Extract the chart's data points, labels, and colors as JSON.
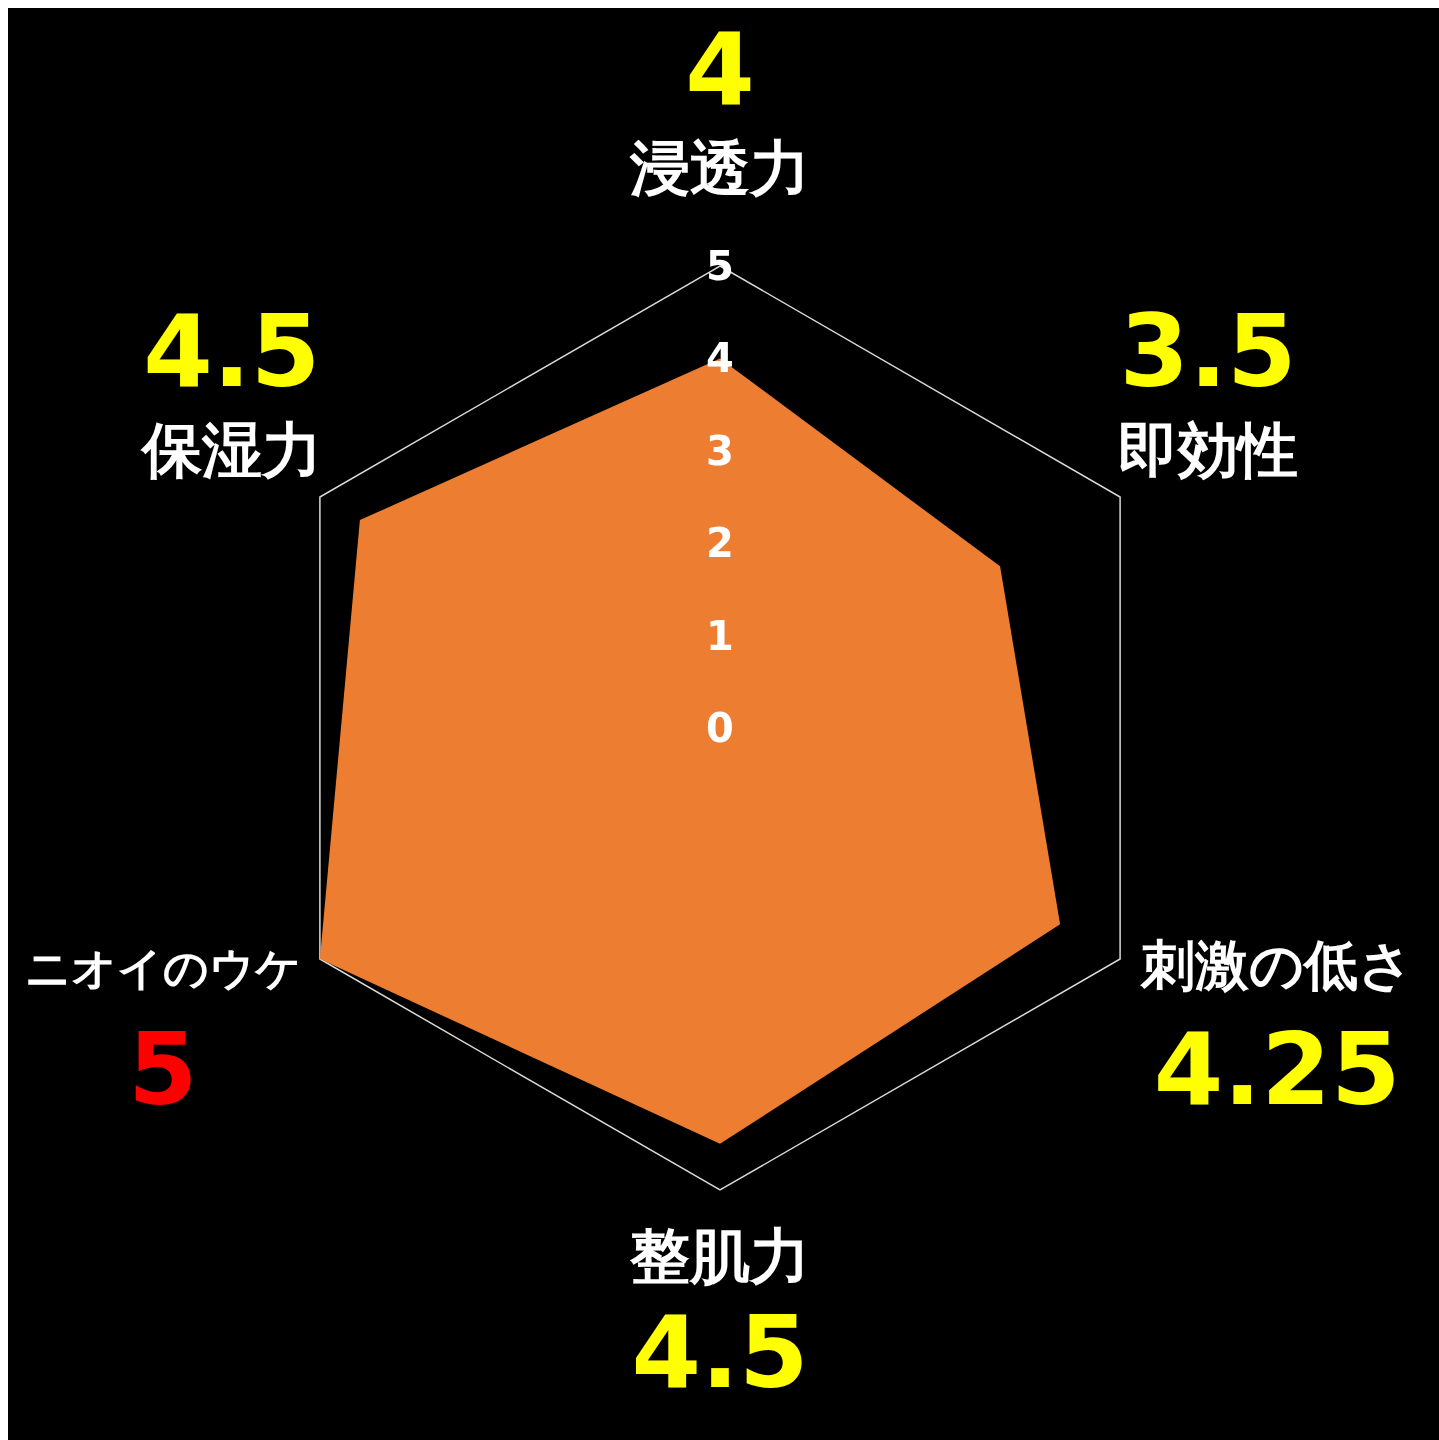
{
  "chart_data": {
    "type": "radar",
    "categories": [
      "浸透力",
      "即効性",
      "刺激の低さ",
      "整肌力",
      "ニオイのウケ",
      "保湿力"
    ],
    "series": [
      {
        "color": "#ed7d31",
        "values": [
          4,
          3.5,
          4.25,
          4.5,
          5,
          4.5
        ]
      }
    ],
    "ylim": [
      0,
      5
    ],
    "yticks": [
      0,
      1,
      2,
      3,
      4,
      5
    ],
    "data_labels": true
  }
}
